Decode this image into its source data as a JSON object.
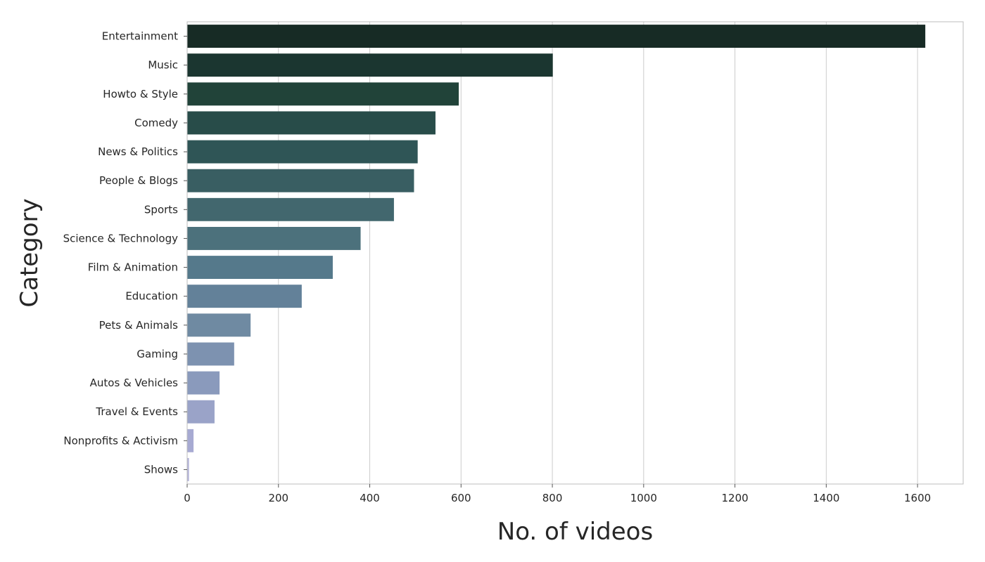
{
  "chart_data": {
    "type": "bar",
    "orientation": "horizontal",
    "xlabel": "No. of videos",
    "ylabel": "Category",
    "xlim": [
      0,
      1700
    ],
    "xticks": [
      0,
      200,
      400,
      600,
      800,
      1000,
      1200,
      1400,
      1600
    ],
    "grid": "vertical",
    "categories": [
      "Entertainment",
      "Music",
      "Howto & Style",
      "Comedy",
      "News & Politics",
      "People & Blogs",
      "Sports",
      "Science & Technology",
      "Film & Animation",
      "Education",
      "Pets & Animals",
      "Gaming",
      "Autos & Vehicles",
      "Travel & Events",
      "Nonprofits & Activism",
      "Shows"
    ],
    "values": [
      1617,
      801,
      595,
      544,
      505,
      497,
      453,
      380,
      319,
      251,
      139,
      103,
      71,
      60,
      14,
      4
    ],
    "colors": [
      "#172b25",
      "#1b3630",
      "#214339",
      "#284c49",
      "#2f5556",
      "#395e62",
      "#42676e",
      "#4c717c",
      "#55798b",
      "#638199",
      "#6f8aa2",
      "#7d92b0",
      "#8a9abc",
      "#9aa3c8",
      "#a7aad2",
      "#b2b2d8"
    ]
  }
}
